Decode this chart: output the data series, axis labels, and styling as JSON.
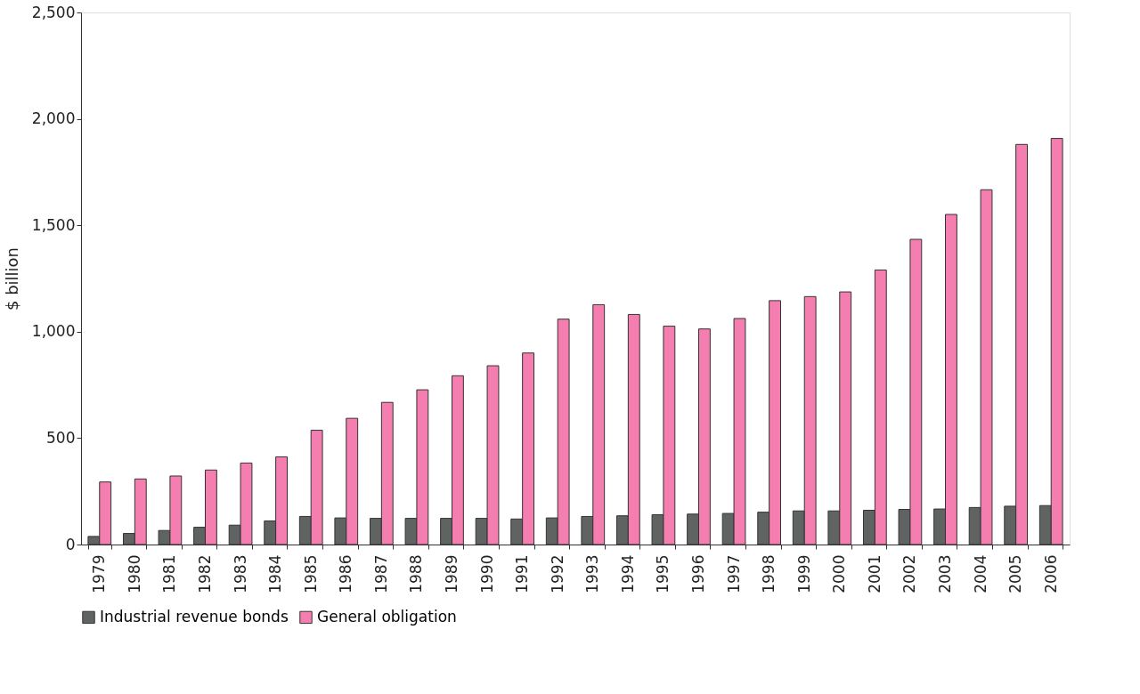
{
  "chart_data": {
    "type": "bar",
    "ylabel": "$ billion",
    "categories": [
      "1979",
      "1980",
      "1981",
      "1982",
      "1983",
      "1984",
      "1985",
      "1986",
      "1987",
      "1988",
      "1989",
      "1990",
      "1991",
      "1992",
      "1993",
      "1994",
      "1995",
      "1996",
      "1997",
      "1998",
      "1999",
      "2000",
      "2001",
      "2002",
      "2003",
      "2004",
      "2005",
      "2006"
    ],
    "series": [
      {
        "name": "Industrial revenue bonds",
        "color": "#5f6361",
        "values": [
          38,
          52,
          66,
          81,
          91,
          111,
          132,
          125,
          123,
          123,
          123,
          123,
          120,
          125,
          132,
          135,
          140,
          143,
          146,
          152,
          158,
          158,
          161,
          165,
          167,
          174,
          180,
          183
        ]
      },
      {
        "name": "General obligation",
        "color": "#f47eb0",
        "values": [
          294,
          308,
          322,
          350,
          383,
          412,
          537,
          593,
          668,
          727,
          793,
          840,
          900,
          1059,
          1127,
          1081,
          1026,
          1013,
          1062,
          1146,
          1165,
          1187,
          1290,
          1434,
          1551,
          1667,
          1880,
          1908
        ]
      }
    ],
    "ylim": [
      0,
      2500
    ],
    "yticks": [
      {
        "value": 0,
        "label": "0"
      },
      {
        "value": 500,
        "label": "500"
      },
      {
        "value": 1000,
        "label": "1,000"
      },
      {
        "value": 1500,
        "label": "1,500"
      },
      {
        "value": 2000,
        "label": "2,000"
      },
      {
        "value": 2500,
        "label": "2,500"
      }
    ],
    "grid": false,
    "legend": "bottom"
  }
}
